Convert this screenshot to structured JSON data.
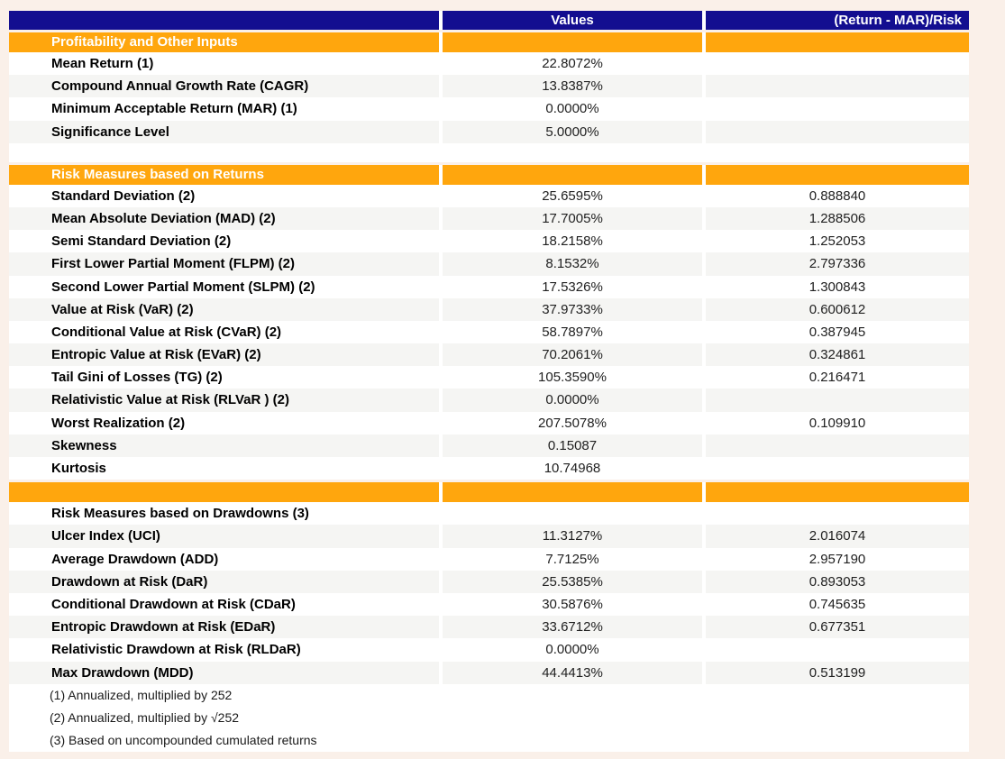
{
  "page": {
    "background_color": "#FAF0E9"
  },
  "table": {
    "colors": {
      "header_bg": "#130E90",
      "header_text": "#FFFFFF",
      "section_bg": "#FFA60D",
      "section_text": "#FFFFFF",
      "stripe_bg": "#F5F5F3",
      "row_bg": "#FFFFFF",
      "label_text": "#000000",
      "value_text": "#212121"
    },
    "header": {
      "label_col": "",
      "values_label": "Values",
      "ratio_label": "(Return - MAR)/Risk"
    },
    "sections": [
      {
        "header": "Profitability and Other Inputs",
        "spacer_before": false,
        "rows": [
          {
            "label": "Mean Return (1)",
            "value": "22.8072%",
            "ratio": ""
          },
          {
            "label": "Compound Annual Growth Rate (CAGR)",
            "value": "13.8387%",
            "ratio": ""
          },
          {
            "label": "Minimum Acceptable Return (MAR) (1)",
            "value": "0.0000%",
            "ratio": ""
          },
          {
            "label": "Significance Level",
            "value": "5.0000%",
            "ratio": ""
          }
        ]
      },
      {
        "header": "Risk Measures based on Returns",
        "spacer_before": true,
        "rows": [
          {
            "label": "Standard Deviation (2)",
            "value": "25.6595%",
            "ratio": "0.888840"
          },
          {
            "label": "Mean Absolute Deviation (MAD) (2)",
            "value": "17.7005%",
            "ratio": "1.288506"
          },
          {
            "label": "Semi Standard Deviation (2)",
            "value": "18.2158%",
            "ratio": "1.252053"
          },
          {
            "label": "First Lower Partial Moment (FLPM) (2)",
            "value": "8.1532%",
            "ratio": "2.797336"
          },
          {
            "label": "Second Lower Partial Moment (SLPM) (2)",
            "value": "17.5326%",
            "ratio": "1.300843"
          },
          {
            "label": "Value at Risk (VaR) (2)",
            "value": "37.9733%",
            "ratio": "0.600612"
          },
          {
            "label": "Conditional Value at Risk (CVaR) (2)",
            "value": "58.7897%",
            "ratio": "0.387945"
          },
          {
            "label": "Entropic Value at Risk (EVaR) (2)",
            "value": "70.2061%",
            "ratio": "0.324861"
          },
          {
            "label": "Tail Gini of Losses (TG) (2)",
            "value": "105.3590%",
            "ratio": "0.216471"
          },
          {
            "label": "Relativistic Value at Risk (RLVaR ) (2)",
            "value": "0.0000%",
            "ratio": ""
          },
          {
            "label": "Worst Realization (2)",
            "value": "207.5078%",
            "ratio": "0.109910"
          },
          {
            "label": "Skewness",
            "value": "0.15087",
            "ratio": ""
          },
          {
            "label": "Kurtosis",
            "value": "10.74968",
            "ratio": ""
          }
        ]
      },
      {
        "header": "",
        "spacer_before": false,
        "rows": [
          {
            "label": "Risk Measures based on Drawdowns (3)",
            "value": "",
            "ratio": ""
          },
          {
            "label": "Ulcer Index (UCI)",
            "value": "11.3127%",
            "ratio": "2.016074"
          },
          {
            "label": "Average Drawdown (ADD)",
            "value": "7.7125%",
            "ratio": "2.957190"
          },
          {
            "label": "Drawdown at Risk (DaR)",
            "value": "25.5385%",
            "ratio": "0.893053"
          },
          {
            "label": "Conditional Drawdown at Risk (CDaR)",
            "value": "30.5876%",
            "ratio": "0.745635"
          },
          {
            "label": "Entropic Drawdown at Risk (EDaR)",
            "value": "33.6712%",
            "ratio": "0.677351"
          },
          {
            "label": "Relativistic Drawdown at Risk (RLDaR)",
            "value": "0.0000%",
            "ratio": ""
          },
          {
            "label": "Max Drawdown (MDD)",
            "value": "44.4413%",
            "ratio": "0.513199"
          }
        ]
      }
    ],
    "footnotes": [
      "(1) Annualized, multiplied by 252",
      "(2) Annualized, multiplied by √252",
      "(3) Based on uncompounded cumulated returns"
    ]
  }
}
